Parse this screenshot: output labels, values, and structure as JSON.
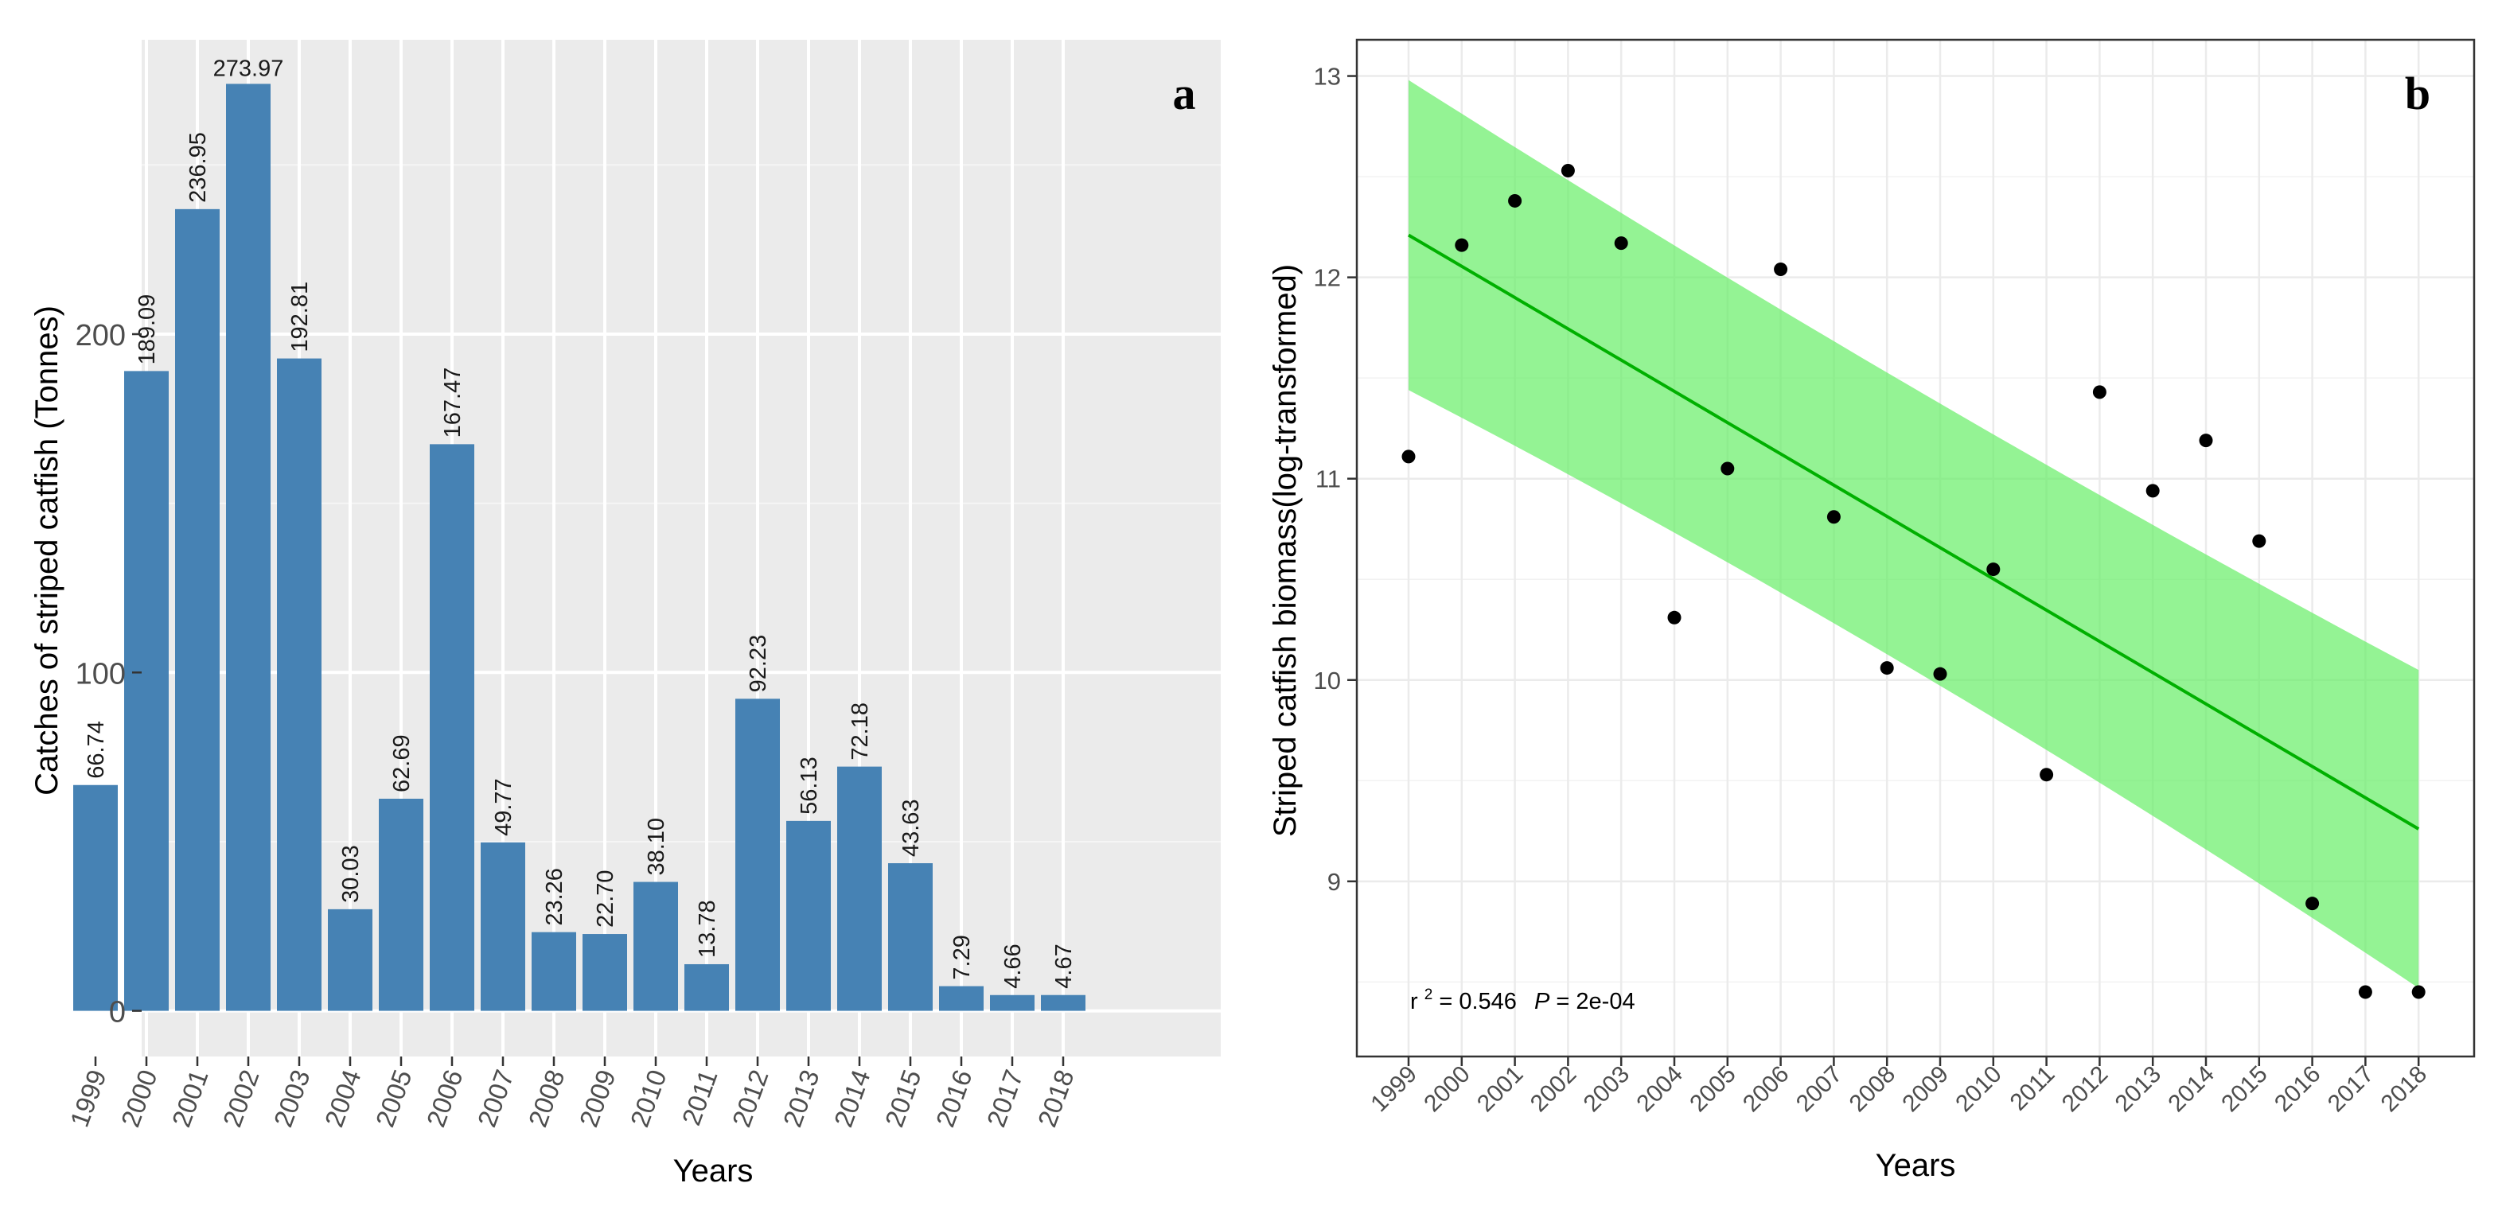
{
  "chart_data": [
    {
      "panel": "a",
      "type": "bar",
      "categories": [
        "1999",
        "2000",
        "2001",
        "2002",
        "2003",
        "2004",
        "2005",
        "2006",
        "2007",
        "2008",
        "2009",
        "2010",
        "2011",
        "2012",
        "2013",
        "2014",
        "2015",
        "2016",
        "2017",
        "2018"
      ],
      "values": [
        66.74,
        189.09,
        236.95,
        273.97,
        192.81,
        30.03,
        62.69,
        167.47,
        49.77,
        23.26,
        22.7,
        38.1,
        13.78,
        92.23,
        56.13,
        72.18,
        43.63,
        7.29,
        4.66,
        4.67
      ],
      "value_labels": [
        "66.74",
        "189.09",
        "236.95",
        "273.97",
        "192.81",
        "30.03",
        "62.69",
        "167.47",
        "49.77",
        "23.26",
        "22.70",
        "38.10",
        "13.78",
        "92.23",
        "56.13",
        "72.18",
        "43.63",
        "7.29",
        "4.66",
        "4.67"
      ],
      "xlabel": "Years",
      "ylabel": "Catches of striped catfish (Tonnes)",
      "ylim": [
        -13.5,
        287
      ],
      "yticks": [
        0,
        100,
        200
      ],
      "ytick_labels": [
        "0",
        "100",
        "200"
      ],
      "bar_color": "#4682b4",
      "panel_bg": "#ebebeb",
      "grid": true,
      "panel_label": "a"
    },
    {
      "panel": "b",
      "type": "scatter",
      "x": [
        "1999",
        "2000",
        "2001",
        "2002",
        "2003",
        "2004",
        "2005",
        "2006",
        "2007",
        "2008",
        "2009",
        "2010",
        "2011",
        "2012",
        "2013",
        "2014",
        "2015",
        "2016",
        "2017",
        "2018"
      ],
      "y": [
        11.11,
        12.16,
        12.38,
        12.53,
        12.17,
        10.31,
        11.05,
        12.04,
        10.81,
        10.06,
        10.03,
        10.55,
        9.53,
        11.43,
        10.94,
        11.19,
        10.69,
        8.89,
        8.45,
        8.45
      ],
      "fit_line": {
        "start": 12.21,
        "end": 9.26,
        "color": "#00b000"
      },
      "confidence_band": {
        "upper": [
          12.98,
          10.05
        ],
        "lower": [
          11.44,
          8.47
        ],
        "mid_upper": 11.45,
        "mid_lower": 10.05,
        "color": "#66ee66"
      },
      "xlabel": "Years",
      "ylabel": "Striped catfish biomass(log-transformed)",
      "ylim": [
        8.13,
        13.18
      ],
      "yticks": [
        9,
        10,
        11,
        12,
        13
      ],
      "ytick_labels": [
        "9",
        "10",
        "11",
        "12",
        "13"
      ],
      "annotation": {
        "r_text": "r",
        "r_sup": "2",
        "r_value": " = 0.546",
        "p_label": "P",
        "p_value": " = 2e-04"
      },
      "grid": true,
      "panel_label": "b"
    }
  ]
}
